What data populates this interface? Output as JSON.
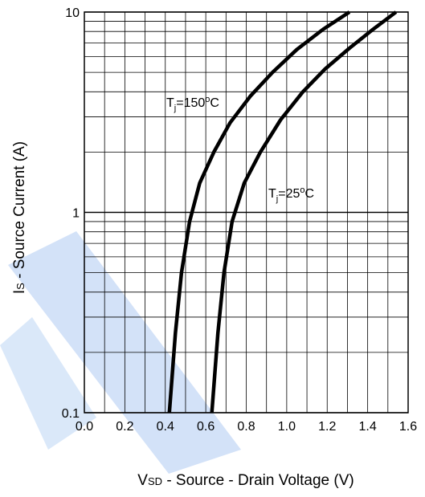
{
  "chart_data": {
    "type": "line",
    "title": "",
    "xlabel": {
      "main": "V",
      "sub": "SD",
      "rest": " - Source - Drain Voltage (V)"
    },
    "ylabel": {
      "main": "I",
      "sub": "S",
      "rest": " - Source Current (A)"
    },
    "xlim": [
      0.0,
      1.6
    ],
    "ylim": [
      0.1,
      10
    ],
    "yscale": "log",
    "grid": true,
    "x_ticks": [
      "0.0",
      "0.2",
      "0.4",
      "0.6",
      "0.8",
      "1.0",
      "1.2",
      "1.4",
      "1.6"
    ],
    "y_ticks": [
      "0.1",
      "1",
      "10"
    ],
    "series": [
      {
        "label": {
          "main": "T",
          "sub": "j",
          "value": "=150",
          "unit": "C"
        },
        "points": [
          [
            0.42,
            0.1
          ],
          [
            0.45,
            0.25
          ],
          [
            0.48,
            0.5
          ],
          [
            0.52,
            0.9
          ],
          [
            0.57,
            1.4
          ],
          [
            0.64,
            2.0
          ],
          [
            0.72,
            2.8
          ],
          [
            0.82,
            3.8
          ],
          [
            0.93,
            5.0
          ],
          [
            1.05,
            6.5
          ],
          [
            1.18,
            8.2
          ],
          [
            1.31,
            10.0
          ]
        ]
      },
      {
        "label": {
          "main": "T",
          "sub": "j",
          "value": "=25",
          "unit": "C"
        },
        "points": [
          [
            0.63,
            0.1
          ],
          [
            0.66,
            0.25
          ],
          [
            0.69,
            0.5
          ],
          [
            0.73,
            0.9
          ],
          [
            0.79,
            1.4
          ],
          [
            0.87,
            2.0
          ],
          [
            0.97,
            2.9
          ],
          [
            1.08,
            4.0
          ],
          [
            1.19,
            5.2
          ],
          [
            1.31,
            6.6
          ],
          [
            1.42,
            8.1
          ],
          [
            1.54,
            10.0
          ]
        ]
      }
    ]
  }
}
